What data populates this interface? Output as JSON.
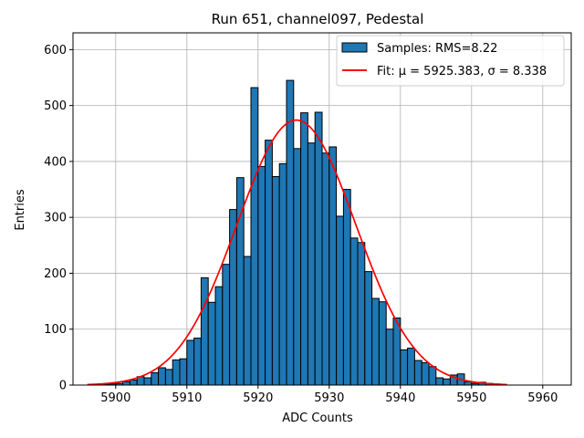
{
  "chart_data": {
    "type": "bar",
    "title": "Run 651, channel097, Pedestal",
    "xlabel": "ADC Counts",
    "ylabel": "Entries",
    "xlim": [
      5894,
      5964
    ],
    "ylim": [
      0,
      630
    ],
    "xticks": [
      5900,
      5910,
      5920,
      5930,
      5940,
      5950,
      5960
    ],
    "yticks": [
      0,
      100,
      200,
      300,
      400,
      500,
      600
    ],
    "grid": true,
    "legend_position": "top-right",
    "histogram": {
      "name": "Samples: RMS=8.22",
      "color": "#1f77b4",
      "bin_width": 1,
      "bins": [
        [
          5898,
          1
        ],
        [
          5899,
          2
        ],
        [
          5900,
          3
        ],
        [
          5901,
          6
        ],
        [
          5902,
          9
        ],
        [
          5903,
          15
        ],
        [
          5904,
          13
        ],
        [
          5905,
          22
        ],
        [
          5906,
          31
        ],
        [
          5907,
          28
        ],
        [
          5908,
          45
        ],
        [
          5909,
          47
        ],
        [
          5910,
          80
        ],
        [
          5911,
          84
        ],
        [
          5912,
          192
        ],
        [
          5913,
          148
        ],
        [
          5914,
          176
        ],
        [
          5915,
          216
        ],
        [
          5916,
          314
        ],
        [
          5917,
          371
        ],
        [
          5918,
          230
        ],
        [
          5919,
          532
        ],
        [
          5920,
          391
        ],
        [
          5921,
          438
        ],
        [
          5922,
          373
        ],
        [
          5923,
          396
        ],
        [
          5924,
          545
        ],
        [
          5925,
          423
        ],
        [
          5926,
          487
        ],
        [
          5927,
          433
        ],
        [
          5928,
          488
        ],
        [
          5929,
          415
        ],
        [
          5930,
          426
        ],
        [
          5931,
          302
        ],
        [
          5932,
          350
        ],
        [
          5933,
          263
        ],
        [
          5934,
          255
        ],
        [
          5935,
          203
        ],
        [
          5936,
          155
        ],
        [
          5937,
          149
        ],
        [
          5938,
          100
        ],
        [
          5939,
          120
        ],
        [
          5940,
          63
        ],
        [
          5941,
          66
        ],
        [
          5942,
          44
        ],
        [
          5943,
          40
        ],
        [
          5944,
          33
        ],
        [
          5945,
          13
        ],
        [
          5946,
          11
        ],
        [
          5947,
          18
        ],
        [
          5948,
          20
        ],
        [
          5949,
          6
        ],
        [
          5950,
          3
        ],
        [
          5951,
          5
        ],
        [
          5952,
          3
        ],
        [
          5953,
          2
        ]
      ]
    },
    "fit": {
      "name": "Fit: μ = 5925.383, σ = 8.338",
      "color": "#ff0000",
      "mu": 5925.383,
      "sigma": 8.338,
      "amplitude": 474,
      "x_range": [
        5896,
        5955
      ]
    }
  }
}
